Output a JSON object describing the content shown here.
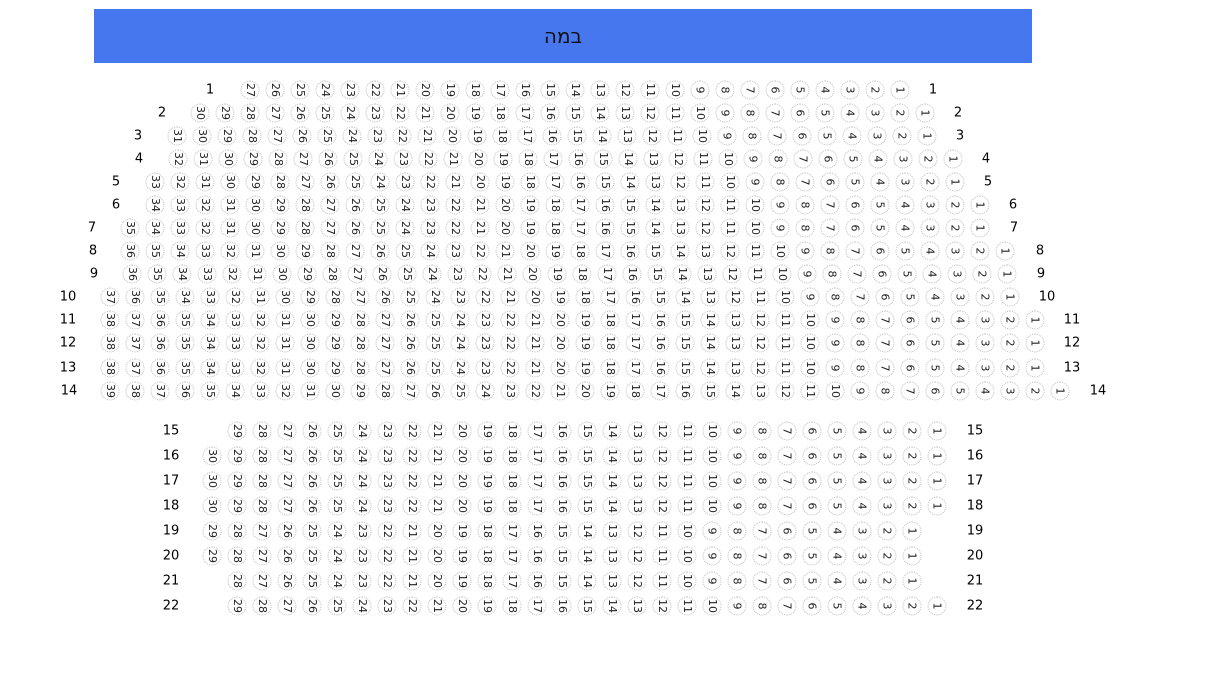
{
  "stage": {
    "label": "במה",
    "color": "#4677ee"
  },
  "rows": [
    {
      "label": "1",
      "seat_count": 27
    },
    {
      "label": "2",
      "seat_count": 30
    },
    {
      "label": "3",
      "seat_count": 31
    },
    {
      "label": "4",
      "seat_count": 32
    },
    {
      "label": "5",
      "seat_count": 33
    },
    {
      "label": "6",
      "seat_count": 34
    },
    {
      "label": "7",
      "seat_count": 35
    },
    {
      "label": "8",
      "seat_count": 36
    },
    {
      "label": "9",
      "seat_count": 36
    },
    {
      "label": "10",
      "seat_count": 37
    },
    {
      "label": "11",
      "seat_count": 38
    },
    {
      "label": "12",
      "seat_count": 38
    },
    {
      "label": "13",
      "seat_count": 38
    },
    {
      "label": "14",
      "seat_count": 39
    },
    {
      "label": "15",
      "seat_count": 29
    },
    {
      "label": "16",
      "seat_count": 30
    },
    {
      "label": "17",
      "seat_count": 30
    },
    {
      "label": "18",
      "seat_count": 30
    },
    {
      "label": "19",
      "seat_count": 29
    },
    {
      "label": "20",
      "seat_count": 29
    },
    {
      "label": "21",
      "seat_count": 28
    },
    {
      "label": "22",
      "seat_count": 29
    }
  ]
}
